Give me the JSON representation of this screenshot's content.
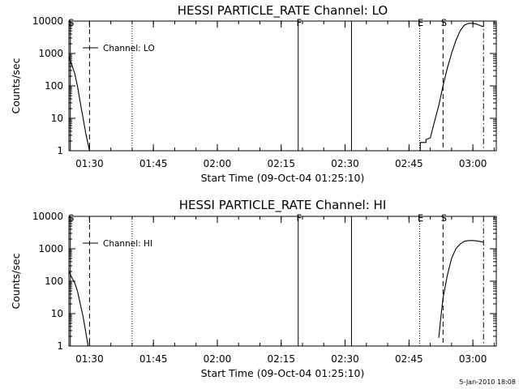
{
  "footer": {
    "timestamp": "5-Jan-2010 18:08"
  },
  "chart_data": [
    {
      "type": "line",
      "title": "HESSI PARTICLE_RATE Channel: LO",
      "xlabel": "Start Time (09-Oct-04 01:25:10)",
      "ylabel": "Counts/sec",
      "y_scale": "log",
      "ylim": [
        1,
        10000
      ],
      "y_ticks": [
        {
          "label": "1",
          "value": 1
        },
        {
          "label": "10",
          "value": 10
        },
        {
          "label": "100",
          "value": 100
        },
        {
          "label": "1000",
          "value": 1000
        },
        {
          "label": "10000",
          "value": 10000
        }
      ],
      "xlim": [
        "01:25:10",
        "03:05:30"
      ],
      "x_ticks": [
        {
          "label": "01:30",
          "value": "01:30"
        },
        {
          "label": "01:45",
          "value": "01:45"
        },
        {
          "label": "02:00",
          "value": "02:00"
        },
        {
          "label": "02:15",
          "value": "02:15"
        },
        {
          "label": "02:30",
          "value": "02:30"
        },
        {
          "label": "02:45",
          "value": "02:45"
        },
        {
          "label": "03:00",
          "value": "03:00"
        }
      ],
      "legend": {
        "label": "Channel: LO",
        "position": "top-left"
      },
      "markers": [
        {
          "label": "S",
          "time": "01:25:30",
          "style": "solid"
        },
        {
          "label": "",
          "time": "01:30:00",
          "style": "dashed"
        },
        {
          "label": "",
          "time": "01:40:00",
          "style": "dotted"
        },
        {
          "label": "F",
          "time": "02:19:00",
          "style": "solid"
        },
        {
          "label": "",
          "time": "02:31:30",
          "style": "solid"
        },
        {
          "label": "E",
          "time": "02:47:30",
          "style": "dotted"
        },
        {
          "label": "S",
          "time": "02:53:00",
          "style": "dashed"
        },
        {
          "label": "",
          "time": "03:02:30",
          "style": "dashdot"
        }
      ],
      "segments": [
        [
          [
            "01:25:10",
            800
          ],
          [
            "01:25:50",
            450
          ],
          [
            "01:26:30",
            250
          ],
          [
            "01:27:10",
            100
          ],
          [
            "01:27:50",
            30
          ],
          [
            "01:28:30",
            10
          ],
          [
            "01:29:10",
            3.2
          ],
          [
            "01:30:00",
            1.0
          ]
        ],
        [
          [
            "02:47:40",
            1.0
          ],
          [
            "02:47:40",
            1.8
          ],
          [
            "02:49:00",
            1.8
          ],
          [
            "02:49:00",
            2.2
          ],
          [
            "02:50:00",
            2.5
          ],
          [
            "02:51:00",
            8
          ],
          [
            "02:52:00",
            25
          ],
          [
            "02:53:00",
            100
          ],
          [
            "02:54:00",
            350
          ],
          [
            "02:55:00",
            1000
          ],
          [
            "02:56:00",
            2500
          ],
          [
            "02:57:00",
            5000
          ],
          [
            "02:58:00",
            7500
          ],
          [
            "02:59:00",
            8500
          ],
          [
            "03:00:00",
            8500
          ],
          [
            "03:01:00",
            8000
          ],
          [
            "03:02:00",
            7000
          ],
          [
            "03:02:30",
            6800
          ]
        ]
      ]
    },
    {
      "type": "line",
      "title": "HESSI PARTICLE_RATE Channel: HI",
      "xlabel": "Start Time (09-Oct-04 01:25:10)",
      "ylabel": "Counts/sec",
      "y_scale": "log",
      "ylim": [
        1,
        10000
      ],
      "y_ticks": [
        {
          "label": "1",
          "value": 1
        },
        {
          "label": "10",
          "value": 10
        },
        {
          "label": "100",
          "value": 100
        },
        {
          "label": "1000",
          "value": 1000
        },
        {
          "label": "10000",
          "value": 10000
        }
      ],
      "xlim": [
        "01:25:10",
        "03:05:30"
      ],
      "x_ticks": [
        {
          "label": "01:30",
          "value": "01:30"
        },
        {
          "label": "01:45",
          "value": "01:45"
        },
        {
          "label": "02:00",
          "value": "02:00"
        },
        {
          "label": "02:15",
          "value": "02:15"
        },
        {
          "label": "02:30",
          "value": "02:30"
        },
        {
          "label": "02:45",
          "value": "02:45"
        },
        {
          "label": "03:00",
          "value": "03:00"
        }
      ],
      "legend": {
        "label": "Channel: HI",
        "position": "top-left"
      },
      "markers": [
        {
          "label": "S",
          "time": "01:25:30",
          "style": "solid"
        },
        {
          "label": "",
          "time": "01:30:00",
          "style": "dashed"
        },
        {
          "label": "",
          "time": "01:40:00",
          "style": "dotted"
        },
        {
          "label": "F",
          "time": "02:19:00",
          "style": "solid"
        },
        {
          "label": "",
          "time": "02:31:30",
          "style": "solid"
        },
        {
          "label": "E",
          "time": "02:47:30",
          "style": "dotted"
        },
        {
          "label": "S",
          "time": "02:53:00",
          "style": "dashed"
        },
        {
          "label": "",
          "time": "03:02:30",
          "style": "dashdot"
        }
      ],
      "segments": [
        [
          [
            "01:25:10",
            200
          ],
          [
            "01:25:50",
            130
          ],
          [
            "01:26:30",
            90
          ],
          [
            "01:27:10",
            50
          ],
          [
            "01:27:50",
            20
          ],
          [
            "01:28:30",
            8
          ],
          [
            "01:29:10",
            2.5
          ],
          [
            "01:29:40",
            1.0
          ]
        ],
        [
          [
            "02:52:00",
            1.8
          ],
          [
            "02:52:30",
            8
          ],
          [
            "02:53:00",
            30
          ],
          [
            "02:54:00",
            150
          ],
          [
            "02:55:00",
            500
          ],
          [
            "02:56:00",
            1000
          ],
          [
            "02:57:00",
            1400
          ],
          [
            "02:58:00",
            1700
          ],
          [
            "02:59:00",
            1800
          ],
          [
            "03:00:00",
            1800
          ],
          [
            "03:01:00",
            1750
          ],
          [
            "03:02:30",
            1600
          ]
        ]
      ]
    }
  ]
}
